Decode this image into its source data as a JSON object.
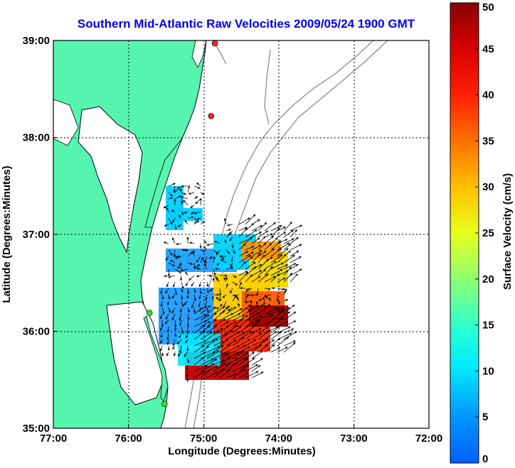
{
  "title": {
    "text": "Southern Mid-Atlantic Raw Velocities 2009/05/24 1900 GMT",
    "color": "#0000ee"
  },
  "x_axis": {
    "label": "Longitude (Degrees:Minutes)",
    "range": [
      -77,
      -72
    ],
    "ticks": [
      {
        "value": -77,
        "label": "77:00"
      },
      {
        "value": -76,
        "label": "76:00"
      },
      {
        "value": -75,
        "label": "75:00"
      },
      {
        "value": -74,
        "label": "74:00"
      },
      {
        "value": -73,
        "label": "73:00"
      },
      {
        "value": -72,
        "label": "72:00"
      }
    ]
  },
  "y_axis": {
    "label": "Latitude (Degrees:Minutes)",
    "range": [
      35,
      39
    ],
    "ticks": [
      {
        "value": 39,
        "label": "39:00"
      },
      {
        "value": 38,
        "label": "38:00"
      },
      {
        "value": 37,
        "label": "37:00"
      },
      {
        "value": 36,
        "label": "36:00"
      },
      {
        "value": 35,
        "label": "35:00"
      }
    ]
  },
  "colorbar": {
    "label": "Surface Velocity (cm/s)",
    "range": [
      0,
      50
    ],
    "ticks": [
      0,
      5,
      10,
      15,
      20,
      25,
      30,
      35,
      40,
      45,
      50
    ]
  },
  "colors": {
    "land": "#55f5b0",
    "coastline": "#000000",
    "isobath": "#8c8c8c",
    "grid": "#000000",
    "site_red": "#ff2020",
    "site_green": "#33dd33"
  },
  "sites": [
    {
      "lon": -74.85,
      "lat": 38.97,
      "color": "red"
    },
    {
      "lon": -74.9,
      "lat": 38.22,
      "color": "red"
    },
    {
      "lon": -75.72,
      "lat": 36.19,
      "color": "green"
    },
    {
      "lon": -75.52,
      "lat": 35.25,
      "color": "green"
    }
  ],
  "chart_data": {
    "type": "heatmap",
    "title": "Southern Mid-Atlantic Raw Velocities 2009/05/24 1900 GMT",
    "xlabel": "Longitude (Degrees:Minutes)",
    "ylabel": "Latitude (Degrees:Minutes)",
    "xlim": [
      -77,
      -72
    ],
    "ylim": [
      35,
      39
    ],
    "grid": true,
    "colorbar_label": "Surface Velocity (cm/s)",
    "colorbar_range": [
      0,
      50
    ],
    "regions": [
      {
        "name": "",
        "lon_range": [
          -75.5,
          -75.1
        ],
        "lat_range": [
          37.0,
          37.5
        ],
        "speed_cm_s": 10
      },
      {
        "name": "",
        "lon_range": [
          -75.5,
          -74.6
        ],
        "lat_range": [
          36.5,
          36.85
        ],
        "speed_cm_s": 8
      },
      {
        "name": "",
        "lon_range": [
          -74.85,
          -74.4
        ],
        "lat_range": [
          36.55,
          37.1
        ],
        "speed_cm_s": 12
      },
      {
        "name": "",
        "lon_range": [
          -74.5,
          -74.15
        ],
        "lat_range": [
          36.4,
          36.85
        ],
        "speed_cm_s": 28
      },
      {
        "name": "",
        "lon_range": [
          -75.6,
          -74.6
        ],
        "lat_range": [
          35.9,
          36.5
        ],
        "speed_cm_s": 9
      },
      {
        "name": "",
        "lon_range": [
          -74.65,
          -74.1
        ],
        "lat_range": [
          36.0,
          36.5
        ],
        "speed_cm_s": 30
      },
      {
        "name": "",
        "lon_range": [
          -75.2,
          -74.3
        ],
        "lat_range": [
          35.55,
          36.0
        ],
        "speed_cm_s": 40
      },
      {
        "name": "",
        "lon_range": [
          -74.45,
          -73.9
        ],
        "lat_range": [
          35.9,
          36.3
        ],
        "speed_cm_s": 48
      }
    ]
  }
}
